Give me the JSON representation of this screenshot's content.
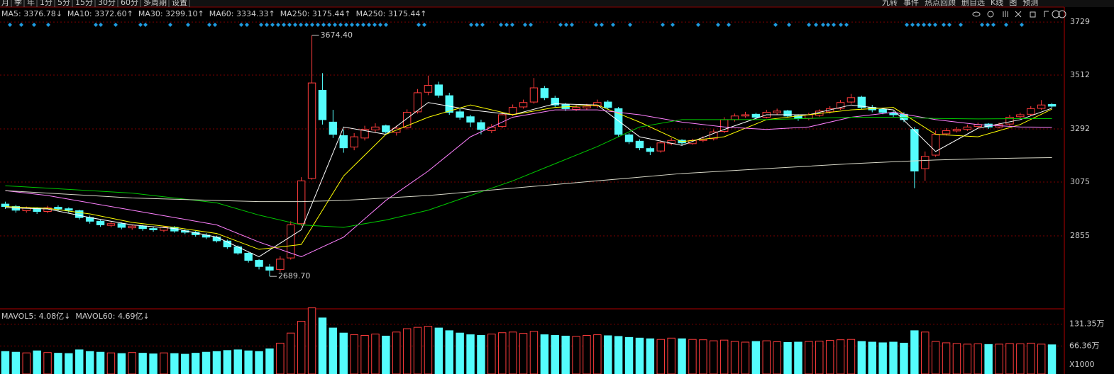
{
  "toolbar": {
    "left": [
      "月",
      "季",
      "年",
      "1分",
      "5分",
      "15分",
      "30分",
      "60分",
      "多周期",
      "设置"
    ],
    "right": [
      "九转",
      "事件",
      "热点回顾",
      "删自选",
      "K线",
      "图",
      "预测"
    ]
  },
  "chart_data": {
    "type": "candlestick",
    "legend": [
      {
        "text": "MA5: 3376.78↓",
        "color": "#ffffff"
      },
      {
        "text": "MA10: 3372.60↑",
        "color": "#ffff00"
      },
      {
        "text": "MA30: 3299.10↑",
        "color": "#ff80ff"
      },
      {
        "text": "MA60: 3334.33↑",
        "color": "#00e600"
      },
      {
        "text": "MA250: 3175.44↑",
        "color": "#00d8d8"
      },
      {
        "text": "MA250: 3175.44↑",
        "color": "#ffffff"
      }
    ],
    "up_color": "#ff3c3c",
    "down_color": "#54fcfc",
    "ylim": [
      2557,
      3790
    ],
    "yticks": [
      3729,
      3512,
      3292,
      3075,
      2855
    ],
    "grid": true,
    "candles": [
      [
        2985,
        2995,
        2965,
        2975
      ],
      [
        2975,
        2982,
        2950,
        2960
      ],
      [
        2958,
        2975,
        2950,
        2968
      ],
      [
        2968,
        2972,
        2945,
        2955
      ],
      [
        2955,
        2978,
        2948,
        2970
      ],
      [
        2972,
        2980,
        2958,
        2965
      ],
      [
        2966,
        2972,
        2950,
        2960
      ],
      [
        2958,
        2962,
        2922,
        2930
      ],
      [
        2930,
        2938,
        2905,
        2915
      ],
      [
        2915,
        2920,
        2892,
        2900
      ],
      [
        2898,
        2912,
        2890,
        2905
      ],
      [
        2905,
        2910,
        2882,
        2890
      ],
      [
        2888,
        2902,
        2880,
        2895
      ],
      [
        2895,
        2900,
        2876,
        2885
      ],
      [
        2885,
        2892,
        2872,
        2880
      ],
      [
        2878,
        2896,
        2870,
        2890
      ],
      [
        2890,
        2895,
        2868,
        2875
      ],
      [
        2876,
        2882,
        2862,
        2870
      ],
      [
        2870,
        2875,
        2852,
        2860
      ],
      [
        2858,
        2866,
        2842,
        2850
      ],
      [
        2850,
        2856,
        2828,
        2835
      ],
      [
        2834,
        2840,
        2802,
        2810
      ],
      [
        2810,
        2816,
        2778,
        2785
      ],
      [
        2784,
        2790,
        2746,
        2755
      ],
      [
        2755,
        2760,
        2718,
        2730
      ],
      [
        2728,
        2740,
        2689.7,
        2715
      ],
      [
        2718,
        2772,
        2708,
        2760
      ],
      [
        2765,
        2915,
        2758,
        2900
      ],
      [
        2905,
        3095,
        2895,
        3080
      ],
      [
        3090,
        3674.4,
        3085,
        3480
      ],
      [
        3450,
        3520,
        3310,
        3330
      ],
      [
        3320,
        3370,
        3255,
        3270
      ],
      [
        3265,
        3290,
        3195,
        3215
      ],
      [
        3218,
        3275,
        3205,
        3260
      ],
      [
        3255,
        3305,
        3245,
        3290
      ],
      [
        3288,
        3315,
        3278,
        3300
      ],
      [
        3305,
        3310,
        3268,
        3280
      ],
      [
        3278,
        3305,
        3265,
        3295
      ],
      [
        3298,
        3372,
        3290,
        3360
      ],
      [
        3362,
        3455,
        3355,
        3440
      ],
      [
        3442,
        3510,
        3430,
        3470
      ],
      [
        3472,
        3485,
        3420,
        3430
      ],
      [
        3428,
        3440,
        3350,
        3360
      ],
      [
        3362,
        3375,
        3330,
        3340
      ],
      [
        3342,
        3350,
        3300,
        3320
      ],
      [
        3318,
        3330,
        3270,
        3290
      ],
      [
        3285,
        3312,
        3275,
        3300
      ],
      [
        3302,
        3360,
        3295,
        3350
      ],
      [
        3352,
        3392,
        3345,
        3380
      ],
      [
        3382,
        3412,
        3375,
        3400
      ],
      [
        3402,
        3500,
        3395,
        3460
      ],
      [
        3458,
        3468,
        3410,
        3420
      ],
      [
        3418,
        3428,
        3382,
        3390
      ],
      [
        3392,
        3398,
        3365,
        3375
      ],
      [
        3372,
        3390,
        3365,
        3380
      ],
      [
        3378,
        3395,
        3370,
        3385
      ],
      [
        3386,
        3412,
        3378,
        3400
      ],
      [
        3402,
        3410,
        3372,
        3380
      ],
      [
        3375,
        3382,
        3260,
        3270
      ],
      [
        3268,
        3275,
        3230,
        3240
      ],
      [
        3242,
        3250,
        3205,
        3215
      ],
      [
        3212,
        3220,
        3185,
        3200
      ],
      [
        3202,
        3245,
        3195,
        3235
      ],
      [
        3232,
        3255,
        3225,
        3245
      ],
      [
        3246,
        3250,
        3225,
        3235
      ],
      [
        3232,
        3252,
        3228,
        3245
      ],
      [
        3245,
        3262,
        3238,
        3250
      ],
      [
        3252,
        3290,
        3245,
        3280
      ],
      [
        3282,
        3340,
        3275,
        3330
      ],
      [
        3330,
        3355,
        3322,
        3345
      ],
      [
        3345,
        3362,
        3338,
        3350
      ],
      [
        3352,
        3358,
        3330,
        3340
      ],
      [
        3340,
        3370,
        3335,
        3360
      ],
      [
        3358,
        3375,
        3350,
        3365
      ],
      [
        3366,
        3370,
        3338,
        3345
      ],
      [
        3346,
        3352,
        3325,
        3335
      ],
      [
        3335,
        3358,
        3328,
        3350
      ],
      [
        3348,
        3372,
        3342,
        3365
      ],
      [
        3362,
        3385,
        3355,
        3375
      ],
      [
        3376,
        3410,
        3370,
        3400
      ],
      [
        3402,
        3435,
        3395,
        3420
      ],
      [
        3422,
        3428,
        3372,
        3380
      ],
      [
        3380,
        3390,
        3360,
        3370
      ],
      [
        3372,
        3378,
        3352,
        3360
      ],
      [
        3358,
        3365,
        3340,
        3350
      ],
      [
        3352,
        3360,
        3320,
        3330
      ],
      [
        3290,
        3300,
        3050,
        3120
      ],
      [
        3130,
        3200,
        3080,
        3180
      ],
      [
        3185,
        3285,
        3178,
        3270
      ],
      [
        3272,
        3295,
        3265,
        3285
      ],
      [
        3284,
        3300,
        3278,
        3290
      ],
      [
        3290,
        3310,
        3284,
        3300
      ],
      [
        3302,
        3318,
        3295,
        3310
      ],
      [
        3312,
        3316,
        3292,
        3300
      ],
      [
        3300,
        3318,
        3294,
        3310
      ],
      [
        3312,
        3350,
        3305,
        3340
      ],
      [
        3342,
        3358,
        3335,
        3350
      ],
      [
        3352,
        3385,
        3345,
        3375
      ],
      [
        3376,
        3410,
        3370,
        3390
      ],
      [
        3392,
        3398,
        3378,
        3385
      ]
    ],
    "ma_x": [
      0,
      4,
      8,
      12,
      16,
      20,
      24,
      28,
      32,
      36,
      40,
      44,
      48,
      52,
      56,
      60,
      64,
      68,
      72,
      76,
      80,
      84,
      88,
      92,
      96,
      99
    ],
    "ma": [
      {
        "color": "#ffffff",
        "values": [
          2970,
          2965,
          2930,
          2900,
          2885,
          2850,
          2770,
          2880,
          3300,
          3270,
          3400,
          3370,
          3350,
          3395,
          3390,
          3260,
          3225,
          3290,
          3350,
          3350,
          3390,
          3370,
          3200,
          3295,
          3330,
          3377
        ]
      },
      {
        "color": "#ffff00",
        "values": [
          2975,
          2968,
          2945,
          2910,
          2890,
          2865,
          2800,
          2820,
          3100,
          3270,
          3340,
          3390,
          3350,
          3380,
          3390,
          3320,
          3240,
          3260,
          3330,
          3350,
          3370,
          3380,
          3270,
          3260,
          3310,
          3373
        ]
      },
      {
        "color": "#ff80ff",
        "values": [
          3040,
          3020,
          2990,
          2960,
          2930,
          2900,
          2830,
          2770,
          2850,
          3000,
          3120,
          3260,
          3340,
          3370,
          3370,
          3350,
          3320,
          3300,
          3290,
          3300,
          3340,
          3360,
          3330,
          3310,
          3300,
          3299
        ]
      },
      {
        "color": "#00c800",
        "values": [
          3060,
          3050,
          3040,
          3030,
          3010,
          2990,
          2940,
          2900,
          2890,
          2920,
          2960,
          3020,
          3080,
          3150,
          3220,
          3300,
          3330,
          3330,
          3330,
          3335,
          3340,
          3340,
          3335,
          3333,
          3334,
          3334
        ]
      },
      {
        "color": "#d8d8c8",
        "values": [
          3040,
          3030,
          3020,
          3010,
          3005,
          3000,
          2995,
          2995,
          3000,
          3010,
          3020,
          3035,
          3050,
          3065,
          3080,
          3095,
          3110,
          3120,
          3130,
          3140,
          3150,
          3158,
          3165,
          3170,
          3173,
          3175
        ]
      }
    ],
    "annotations": [
      {
        "value": 3674.4,
        "label": "3674.40"
      },
      {
        "value": 2689.7,
        "label": "2689.70"
      }
    ],
    "volume_legend": [
      {
        "text": "MAVOL5: 4.08亿↓",
        "color": "#ffff00"
      },
      {
        "text": "MAVOL60: 4.69亿↓",
        "color": "#ffffff"
      }
    ],
    "volumes": [
      50,
      48,
      46,
      52,
      47,
      45,
      44,
      55,
      50,
      48,
      46,
      44,
      47,
      45,
      43,
      46,
      44,
      42,
      45,
      48,
      50,
      53,
      55,
      52,
      50,
      58,
      75,
      105,
      140,
      180,
      150,
      120,
      105,
      100,
      98,
      102,
      96,
      108,
      118,
      122,
      125,
      120,
      112,
      105,
      100,
      98,
      102,
      106,
      108,
      104,
      110,
      100,
      98,
      96,
      95,
      98,
      100,
      97,
      95,
      92,
      90,
      88,
      86,
      90,
      88,
      86,
      85,
      82,
      84,
      80,
      78,
      80,
      82,
      79,
      77,
      78,
      80,
      81,
      83,
      85,
      86,
      80,
      78,
      76,
      78,
      75,
      112,
      108,
      80,
      76,
      74,
      72,
      73,
      71,
      72,
      74,
      73,
      75,
      72,
      70
    ],
    "vol_ylim": [
      0,
      175
    ],
    "vol_ticks": [
      {
        "value": 131.35,
        "label": "131.35万"
      },
      {
        "value": 66.36,
        "label": "66.36万"
      }
    ],
    "vol_unit": "X1000"
  }
}
